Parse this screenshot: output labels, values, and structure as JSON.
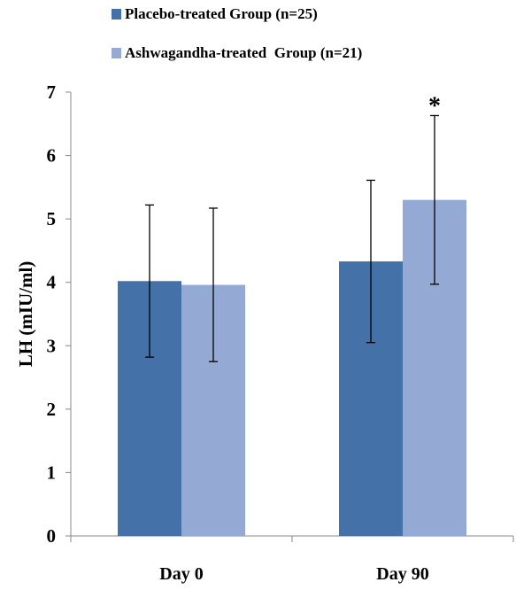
{
  "chart_data": {
    "type": "bar",
    "categories": [
      "Day 0",
      "Day 90"
    ],
    "series": [
      {
        "name": "Placebo-treated Group (n=25)",
        "values": [
          4.02,
          4.33
        ],
        "errors": [
          1.2,
          1.28
        ],
        "color": "#4472A8"
      },
      {
        "name": "Ashwagandha-treated  Group (n=21)",
        "values": [
          3.96,
          5.3
        ],
        "errors": [
          1.21,
          1.33
        ],
        "color": "#94AAD4"
      }
    ],
    "ylabel": "LH (mIU/ml)",
    "xlabel": "",
    "ylim": [
      0,
      7
    ],
    "yticks": [
      "0",
      "1",
      "2",
      "3",
      "4",
      "5",
      "6",
      "7"
    ],
    "grid": false,
    "legend_position": "top",
    "annotations": [
      {
        "text": "*",
        "category": "Day 90",
        "series": 1
      }
    ]
  }
}
